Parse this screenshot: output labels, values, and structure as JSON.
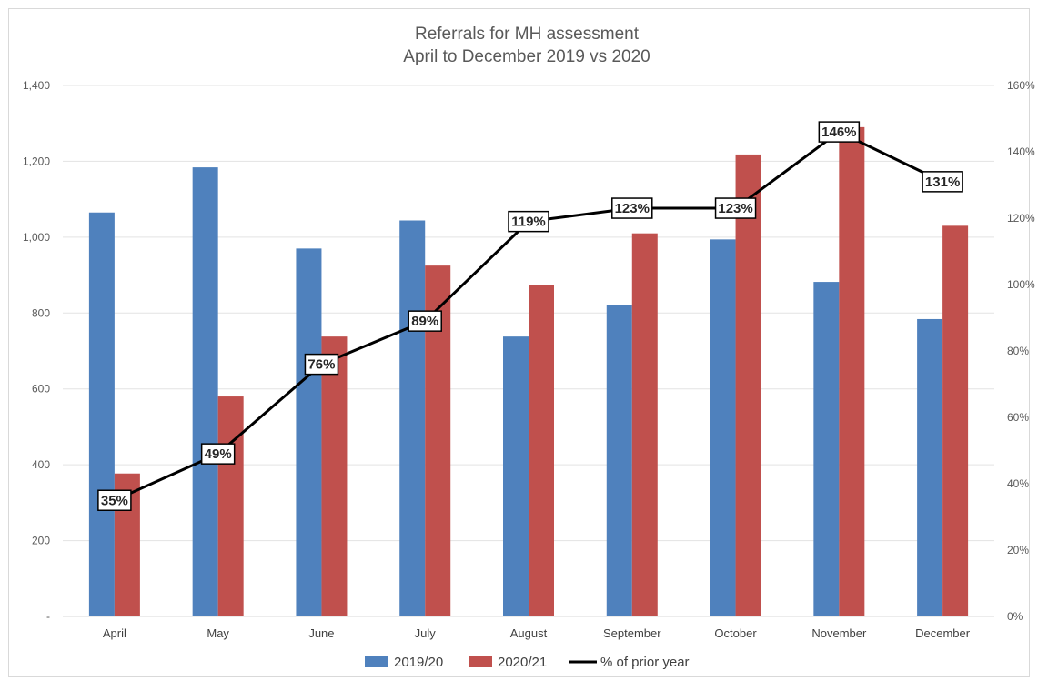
{
  "chart_data": {
    "type": "bar",
    "title": "Referrals for MH assessment",
    "subtitle": "April to December 2019 vs 2020",
    "categories": [
      "April",
      "May",
      "June",
      "July",
      "August",
      "September",
      "October",
      "November",
      "December"
    ],
    "series": [
      {
        "name": "2019/20",
        "color": "#4f81bd",
        "values": [
          1065,
          1184,
          970,
          1044,
          738,
          822,
          994,
          882,
          784
        ]
      },
      {
        "name": "2020/21",
        "color": "#c0504d",
        "values": [
          377,
          580,
          738,
          925,
          875,
          1010,
          1218,
          1290,
          1030
        ]
      }
    ],
    "line_series": {
      "name": "% of prior year",
      "color": "#000000",
      "axis": "secondary",
      "values": [
        35,
        49,
        76,
        89,
        119,
        123,
        123,
        146,
        131
      ],
      "labels": [
        "35%",
        "49%",
        "76%",
        "89%",
        "119%",
        "123%",
        "123%",
        "146%",
        "131%"
      ]
    },
    "y_axis": {
      "min": 0,
      "max": 1400,
      "step": 200,
      "ticks": [
        "-",
        "200",
        "400",
        "600",
        "800",
        "1,000",
        "1,200",
        "1,400"
      ]
    },
    "y2_axis": {
      "min": 0,
      "max": 160,
      "step": 20,
      "ticks": [
        "0%",
        "20%",
        "40%",
        "60%",
        "80%",
        "100%",
        "120%",
        "140%",
        "160%"
      ]
    },
    "grid": true,
    "legend": "bottom-center"
  }
}
